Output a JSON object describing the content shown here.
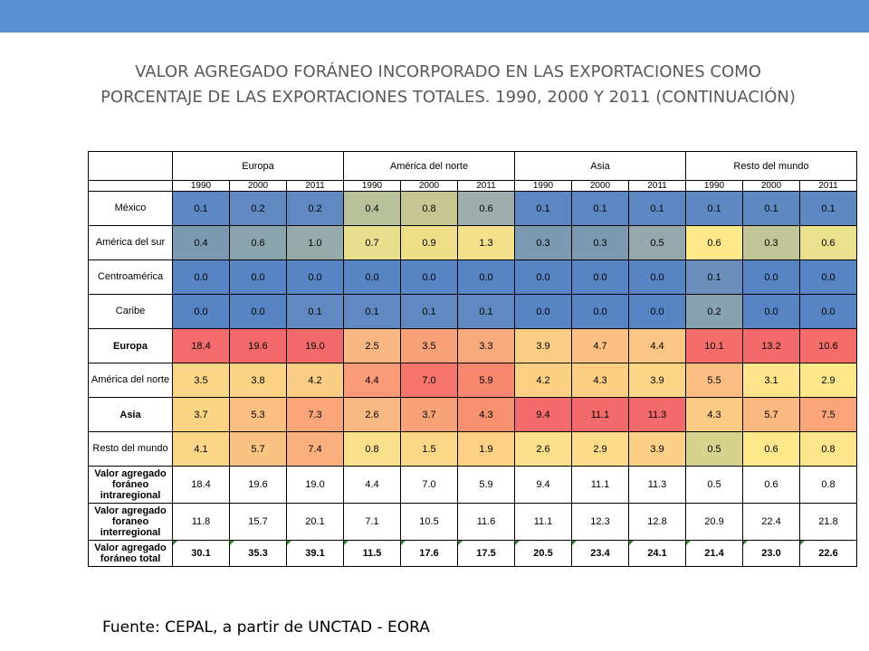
{
  "title_lines": [
    "VALOR AGREGADO FORÁNEO INCORPORADO EN LAS EXPORTACIONES COMO",
    "PORCENTAJE DE LAS EXPORTACIONES TOTALES. 1990, 2000 Y 2011 (CONTINUACIÓN)"
  ],
  "source": "Fuente: CEPAL, a partir de UNCTAD - EORA",
  "regions": [
    "Europa",
    "América del norte",
    "Asia",
    "Resto del mundo"
  ],
  "years": [
    "1990",
    "2000",
    "2011"
  ],
  "colored_rows": [
    {
      "label": "México",
      "values": [
        "0.1",
        "0.2",
        "0.2",
        "0.4",
        "0.8",
        "0.6",
        "0.1",
        "0.1",
        "0.1",
        "0.1",
        "0.1",
        "0.1"
      ],
      "colors": [
        "#5b87c2",
        "#5f89c0",
        "#5f89c0",
        "#b9c19a",
        "#c6c690",
        "#9eaead",
        "#5b87c2",
        "#5b87c2",
        "#5b87c2",
        "#5d88c1",
        "#5d88c1",
        "#5d88c1"
      ]
    },
    {
      "label": "América del sur",
      "values": [
        "0.4",
        "0.6",
        "1.0",
        "0.7",
        "0.9",
        "1.3",
        "0.3",
        "0.3",
        "0.5",
        "0.6",
        "0.3",
        "0.6"
      ],
      "colors": [
        "#7c9bb3",
        "#8aa4ad",
        "#97abaa",
        "#e8df8e",
        "#edde87",
        "#f3e08a",
        "#7c9bb3",
        "#7c9bb3",
        "#95a9ac",
        "#fde98a",
        "#c2c595",
        "#ebe08e"
      ]
    },
    {
      "label": "Centroamérica",
      "values": [
        "0.0",
        "0.0",
        "0.0",
        "0.0",
        "0.0",
        "0.0",
        "0.0",
        "0.0",
        "0.0",
        "0.1",
        "0.0",
        "0.0"
      ],
      "colors": [
        "#5784c4",
        "#5784c4",
        "#5784c4",
        "#5784c4",
        "#5784c4",
        "#5784c4",
        "#5784c4",
        "#5784c4",
        "#5784c4",
        "#6b8fbc",
        "#5784c4",
        "#5784c4"
      ]
    },
    {
      "label": "Caribe",
      "values": [
        "0.0",
        "0.0",
        "0.1",
        "0.1",
        "0.1",
        "0.1",
        "0.0",
        "0.0",
        "0.0",
        "0.2",
        "0.0",
        "0.0"
      ],
      "colors": [
        "#5784c4",
        "#5784c4",
        "#5f89c0",
        "#5f89c0",
        "#5f89c0",
        "#5f89c0",
        "#5784c4",
        "#5784c4",
        "#5784c4",
        "#86a1b0",
        "#5784c4",
        "#5784c4"
      ]
    },
    {
      "label": "Europa",
      "bold": true,
      "values": [
        "18.4",
        "19.6",
        "19.0",
        "2.5",
        "3.5",
        "3.3",
        "3.9",
        "4.7",
        "4.4",
        "10.1",
        "13.2",
        "10.6"
      ],
      "colors": [
        "#f46d6c",
        "#f3686b",
        "#f46a6b",
        "#f9b883",
        "#f8a27a",
        "#f9a97d",
        "#fbcd85",
        "#fbc082",
        "#fbc684",
        "#f56d6b",
        "#f46a6a",
        "#f56d6b"
      ]
    },
    {
      "label": "América del norte",
      "values": [
        "3.5",
        "3.8",
        "4.2",
        "4.4",
        "7.0",
        "5.9",
        "4.2",
        "4.3",
        "3.9",
        "5.5",
        "3.1",
        "2.9"
      ],
      "colors": [
        "#fcd686",
        "#fcd285",
        "#fccd85",
        "#fa9a77",
        "#f5756c",
        "#f7876f",
        "#fcd083",
        "#fccf83",
        "#fcd686",
        "#fbbd81",
        "#fde48a",
        "#fde78a"
      ]
    },
    {
      "label": "Asia",
      "bold": true,
      "values": [
        "3.7",
        "5.3",
        "7.3",
        "2.6",
        "3.7",
        "4.3",
        "9.4",
        "11.1",
        "11.3",
        "4.3",
        "5.7",
        "7.5"
      ],
      "colors": [
        "#fbd385",
        "#fbbf81",
        "#f9a579",
        "#f9b984",
        "#f8a27a",
        "#f7906f",
        "#f36b6b",
        "#f26a6a",
        "#f26a6a",
        "#fbca84",
        "#fab980",
        "#f9a479"
      ]
    },
    {
      "label": "Resto del mundo",
      "values": [
        "4.1",
        "5.7",
        "7.4",
        "0.8",
        "1.5",
        "1.9",
        "2.6",
        "2.9",
        "3.9",
        "0.5",
        "0.6",
        "0.8"
      ],
      "colors": [
        "#fcd687",
        "#fbc381",
        "#fab07d",
        "#fbe08b",
        "#fdd788",
        "#fdd086",
        "#fbdf8a",
        "#fcdc89",
        "#fccf86",
        "#d6d38f",
        "#fde88b",
        "#fce58a"
      ]
    }
  ],
  "plain_rows": [
    {
      "label": "Valor agregado foráneo intraregional",
      "values": [
        "18.4",
        "19.6",
        "19.0",
        "4.4",
        "7.0",
        "5.9",
        "9.4",
        "11.1",
        "11.3",
        "0.5",
        "0.6",
        "0.8"
      ]
    },
    {
      "label": "Valor agregado foraneo interregional",
      "values": [
        "11.8",
        "15.7",
        "20.1",
        "7.1",
        "10.5",
        "11.6",
        "11.1",
        "12.3",
        "12.8",
        "20.9",
        "22.4",
        "21.8"
      ]
    },
    {
      "label": "Valor agregado foráneo total",
      "values": [
        "30.1",
        "35.3",
        "39.1",
        "11.5",
        "17.6",
        "17.5",
        "20.5",
        "23.4",
        "24.1",
        "21.4",
        "23.0",
        "22.6"
      ]
    }
  ]
}
